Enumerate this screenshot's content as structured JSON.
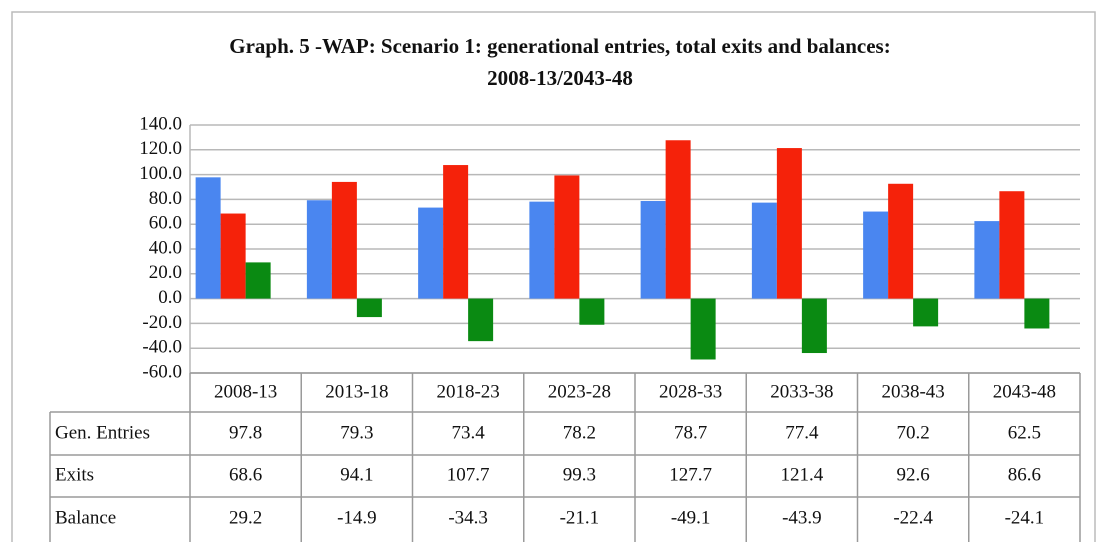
{
  "chart_data": {
    "type": "bar",
    "title": [
      "Graph. 5 -WAP: Scenario 1: generational entries, total exits and balances:",
      "2008-13/2043-48"
    ],
    "categories": [
      "2008-13",
      "2013-18",
      "2018-23",
      "2023-28",
      "2028-33",
      "2033-38",
      "2038-43",
      "2043-48"
    ],
    "series": [
      {
        "name": "Gen. Entries",
        "color": "#4a86f0",
        "values": [
          97.8,
          79.3,
          73.4,
          78.2,
          78.7,
          77.4,
          70.2,
          62.5
        ]
      },
      {
        "name": "Exits",
        "color": "#f5220a",
        "values": [
          68.6,
          94.1,
          107.7,
          99.3,
          127.7,
          121.4,
          92.6,
          86.6
        ]
      },
      {
        "name": "Balance",
        "color": "#0a8a12",
        "values": [
          29.2,
          -14.9,
          -34.3,
          -21.1,
          -49.1,
          -43.9,
          -22.4,
          -24.1
        ]
      }
    ],
    "ylim": [
      -60,
      140
    ],
    "yticks": [
      {
        "value": -60,
        "label": "-60.0"
      },
      {
        "value": -40,
        "label": "-40.0"
      },
      {
        "value": -20,
        "label": "-20.0"
      },
      {
        "value": 0,
        "label": "0.0"
      },
      {
        "value": 20,
        "label": "20.0"
      },
      {
        "value": 40,
        "label": "40.0"
      },
      {
        "value": 60,
        "label": "60.0"
      },
      {
        "value": 80,
        "label": "80.0"
      },
      {
        "value": 100,
        "label": "100.0"
      },
      {
        "value": 120,
        "label": "120.0"
      },
      {
        "value": 140,
        "label": "140.0"
      }
    ],
    "grid": true
  }
}
